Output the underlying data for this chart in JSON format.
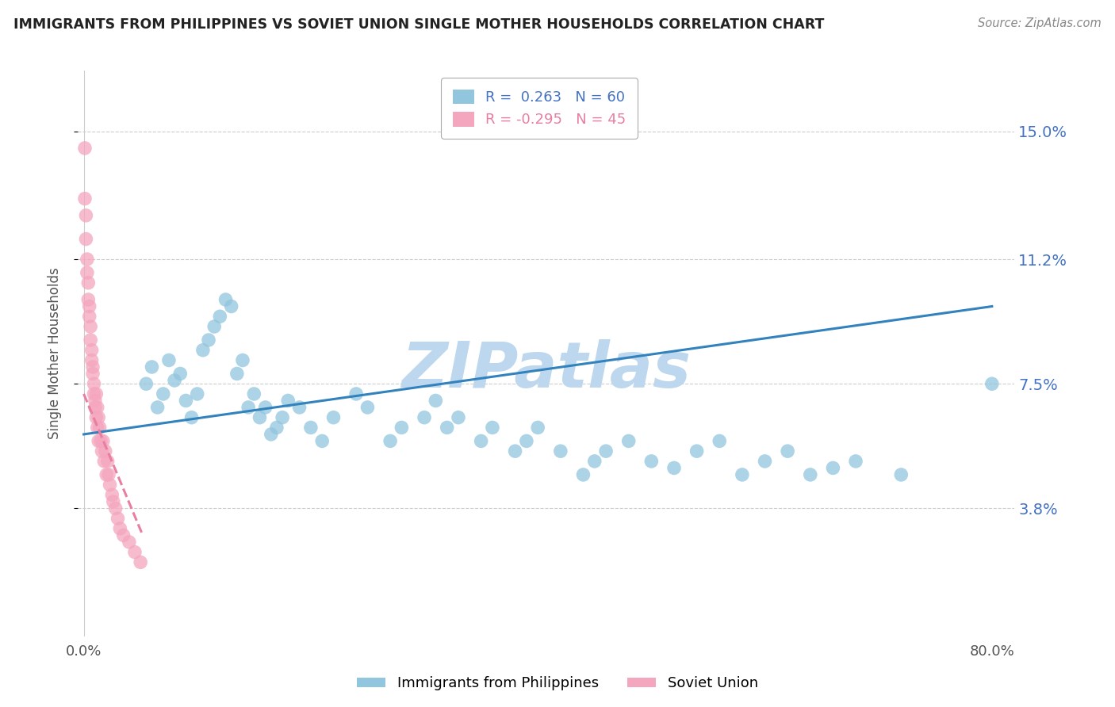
{
  "title": "IMMIGRANTS FROM PHILIPPINES VS SOVIET UNION SINGLE MOTHER HOUSEHOLDS CORRELATION CHART",
  "source": "Source: ZipAtlas.com",
  "ylabel": "Single Mother Households",
  "legend_label_1": "Immigrants from Philippines",
  "legend_label_2": "Soviet Union",
  "r1": 0.263,
  "n1": 60,
  "r2": -0.295,
  "n2": 45,
  "color1": "#92C5DE",
  "color2": "#F4A6BE",
  "trendline1_color": "#3182bd",
  "trendline2_color": "#E87FA0",
  "yticks": [
    0.038,
    0.075,
    0.112,
    0.15
  ],
  "ytick_labels": [
    "3.8%",
    "7.5%",
    "11.2%",
    "15.0%"
  ],
  "xlim": [
    -0.005,
    0.82
  ],
  "ylim": [
    0.0,
    0.168
  ],
  "watermark": "ZIPatlas",
  "watermark_color": "#BDD7EE",
  "background_color": "#ffffff",
  "grid_color": "#cccccc",
  "philippines_x": [
    0.055,
    0.06,
    0.065,
    0.07,
    0.075,
    0.08,
    0.085,
    0.09,
    0.095,
    0.1,
    0.105,
    0.11,
    0.115,
    0.12,
    0.125,
    0.13,
    0.135,
    0.14,
    0.145,
    0.15,
    0.155,
    0.16,
    0.165,
    0.17,
    0.175,
    0.18,
    0.19,
    0.2,
    0.21,
    0.22,
    0.24,
    0.25,
    0.27,
    0.28,
    0.3,
    0.31,
    0.32,
    0.33,
    0.35,
    0.36,
    0.38,
    0.39,
    0.4,
    0.42,
    0.44,
    0.45,
    0.46,
    0.48,
    0.5,
    0.52,
    0.54,
    0.56,
    0.58,
    0.6,
    0.62,
    0.64,
    0.66,
    0.68,
    0.72,
    0.8
  ],
  "philippines_y": [
    0.075,
    0.08,
    0.068,
    0.072,
    0.082,
    0.076,
    0.078,
    0.07,
    0.065,
    0.072,
    0.085,
    0.088,
    0.092,
    0.095,
    0.1,
    0.098,
    0.078,
    0.082,
    0.068,
    0.072,
    0.065,
    0.068,
    0.06,
    0.062,
    0.065,
    0.07,
    0.068,
    0.062,
    0.058,
    0.065,
    0.072,
    0.068,
    0.058,
    0.062,
    0.065,
    0.07,
    0.062,
    0.065,
    0.058,
    0.062,
    0.055,
    0.058,
    0.062,
    0.055,
    0.048,
    0.052,
    0.055,
    0.058,
    0.052,
    0.05,
    0.055,
    0.058,
    0.048,
    0.052,
    0.055,
    0.048,
    0.05,
    0.052,
    0.048,
    0.075
  ],
  "soviet_x": [
    0.001,
    0.001,
    0.002,
    0.002,
    0.003,
    0.003,
    0.004,
    0.004,
    0.005,
    0.005,
    0.006,
    0.006,
    0.007,
    0.007,
    0.008,
    0.008,
    0.009,
    0.009,
    0.01,
    0.01,
    0.011,
    0.011,
    0.012,
    0.012,
    0.013,
    0.013,
    0.014,
    0.015,
    0.016,
    0.017,
    0.018,
    0.019,
    0.02,
    0.021,
    0.022,
    0.023,
    0.025,
    0.026,
    0.028,
    0.03,
    0.032,
    0.035,
    0.04,
    0.045,
    0.05
  ],
  "soviet_y": [
    0.145,
    0.13,
    0.125,
    0.118,
    0.112,
    0.108,
    0.105,
    0.1,
    0.098,
    0.095,
    0.092,
    0.088,
    0.085,
    0.082,
    0.08,
    0.078,
    0.075,
    0.072,
    0.07,
    0.068,
    0.072,
    0.065,
    0.068,
    0.062,
    0.065,
    0.058,
    0.062,
    0.058,
    0.055,
    0.058,
    0.052,
    0.055,
    0.048,
    0.052,
    0.048,
    0.045,
    0.042,
    0.04,
    0.038,
    0.035,
    0.032,
    0.03,
    0.028,
    0.025,
    0.022
  ],
  "phil_trendline_x0": 0.0,
  "phil_trendline_y0": 0.06,
  "phil_trendline_x1": 0.8,
  "phil_trendline_y1": 0.098,
  "sov_trendline_x0": 0.0,
  "sov_trendline_y0": 0.072,
  "sov_trendline_x1": 0.052,
  "sov_trendline_y1": 0.03
}
